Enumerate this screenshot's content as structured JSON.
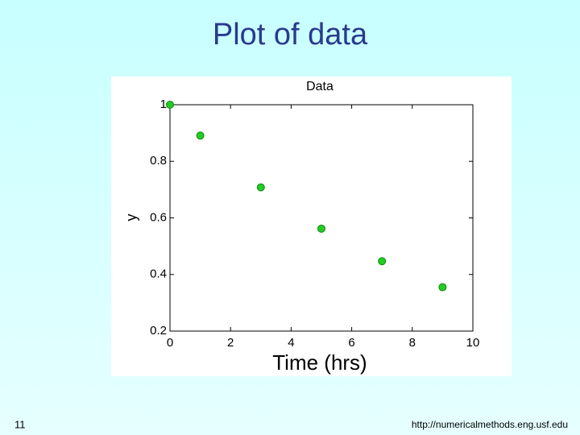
{
  "slide": {
    "title": "Plot of data",
    "page_number": "11",
    "footer": "http://numericalmethods.eng.usf.edu"
  },
  "chart_data": {
    "type": "scatter",
    "title": "Data",
    "x_label": "Time (hrs)",
    "y_label": "y",
    "x": [
      0,
      1,
      3,
      5,
      7,
      9
    ],
    "values": [
      1,
      0.891,
      0.708,
      0.562,
      0.447,
      0.355
    ],
    "color": "#22cc22",
    "xlim": [
      0,
      10
    ],
    "xticks": [
      0,
      2,
      4,
      6,
      8,
      10
    ],
    "ylim": [
      0.2,
      1
    ],
    "yticks": [
      0.2,
      0.4,
      0.6,
      0.8,
      1
    ],
    "grid": false
  }
}
